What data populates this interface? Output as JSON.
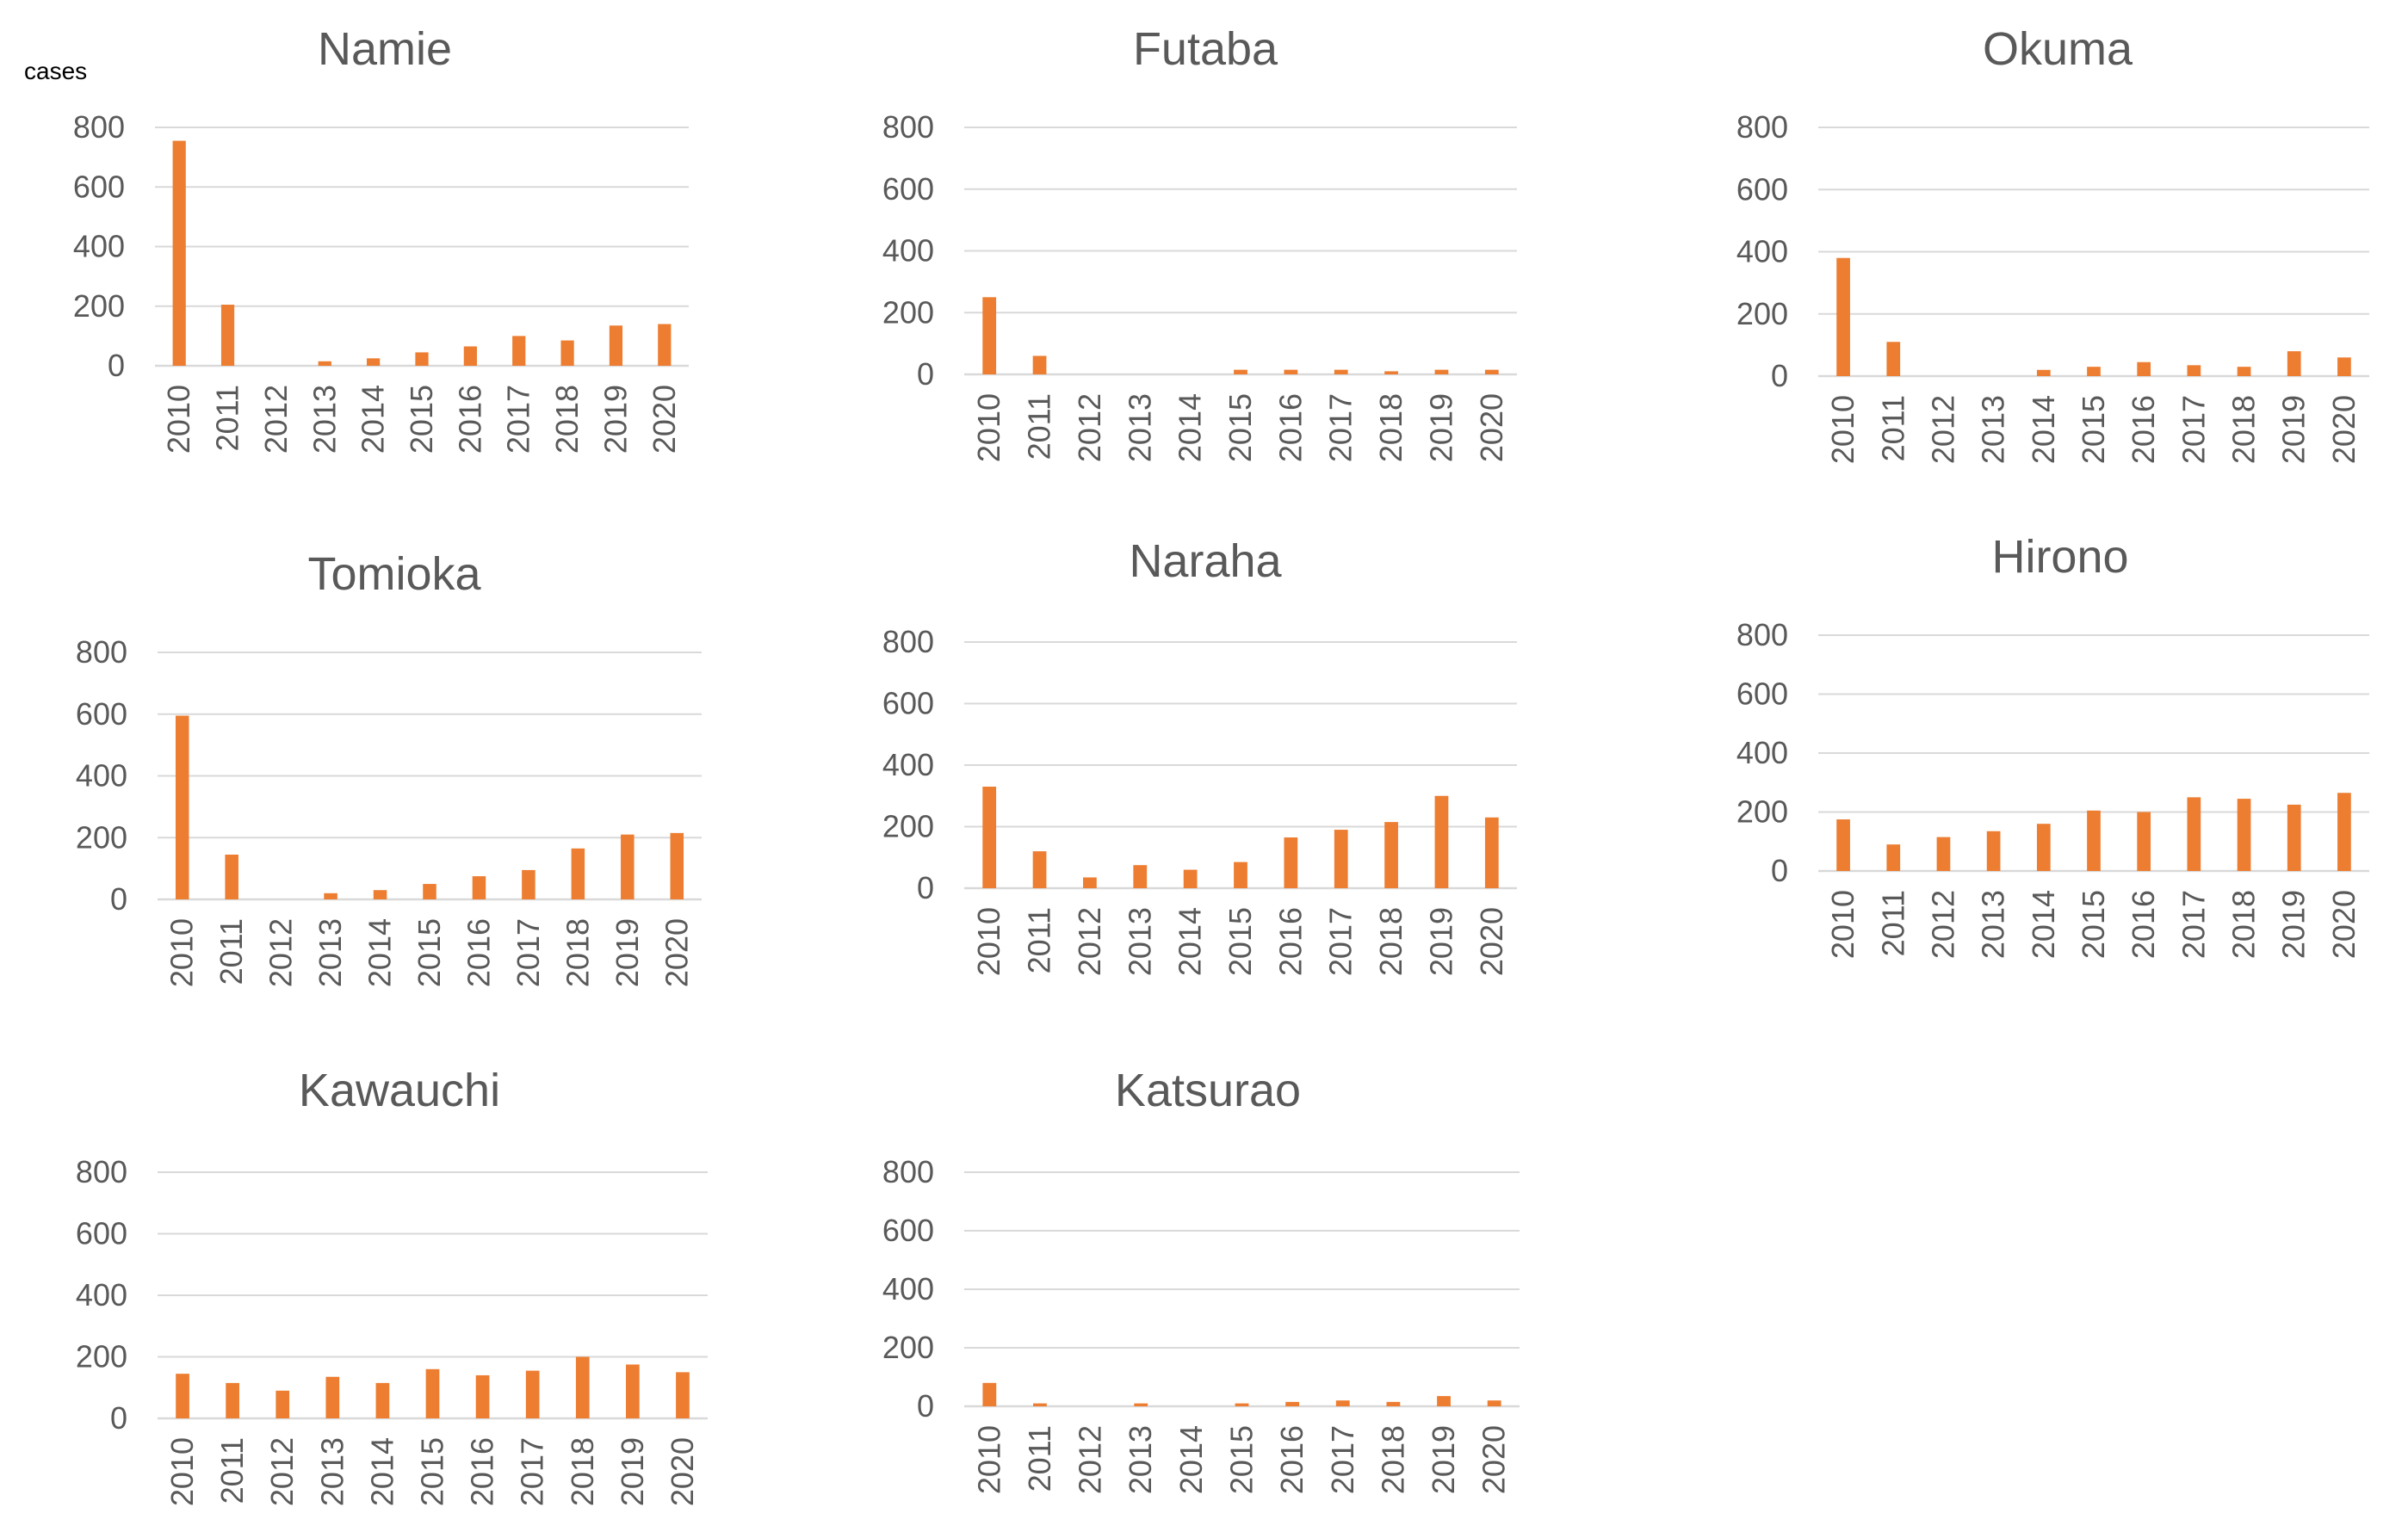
{
  "figure": {
    "unit_label": "cases",
    "bar_color": "#ED7D31"
  },
  "chart_data": [
    {
      "type": "bar",
      "title": "Namie",
      "xlabel": "",
      "ylabel": "cases",
      "ylim": [
        0,
        800
      ],
      "yticks": [
        "800",
        "600",
        "400",
        "200",
        "0"
      ],
      "categories": [
        "2010",
        "2011",
        "2012",
        "2013",
        "2014",
        "2015",
        "2016",
        "2017",
        "2018",
        "2019",
        "2020"
      ],
      "values": [
        755,
        205,
        0,
        15,
        25,
        45,
        65,
        100,
        85,
        135,
        140
      ]
    },
    {
      "type": "bar",
      "title": "Futaba",
      "xlabel": "",
      "ylabel": "",
      "ylim": [
        0,
        800
      ],
      "yticks": [
        "800",
        "600",
        "400",
        "200",
        "0"
      ],
      "categories": [
        "2010",
        "2011",
        "2012",
        "2013",
        "2014",
        "2015",
        "2016",
        "2017",
        "2018",
        "2019",
        "2020"
      ],
      "values": [
        250,
        60,
        0,
        0,
        0,
        15,
        15,
        15,
        10,
        15,
        15
      ]
    },
    {
      "type": "bar",
      "title": "Okuma",
      "xlabel": "",
      "ylabel": "",
      "ylim": [
        0,
        800
      ],
      "yticks": [
        "800",
        "600",
        "400",
        "200",
        "0"
      ],
      "categories": [
        "2010",
        "2011",
        "2012",
        "2013",
        "2014",
        "2015",
        "2016",
        "2017",
        "2018",
        "2019",
        "2020"
      ],
      "values": [
        380,
        110,
        0,
        0,
        20,
        30,
        45,
        35,
        30,
        80,
        60
      ]
    },
    {
      "type": "bar",
      "title": "Tomioka",
      "xlabel": "",
      "ylabel": "",
      "ylim": [
        0,
        800
      ],
      "yticks": [
        "800",
        "600",
        "400",
        "200",
        "0"
      ],
      "categories": [
        "2010",
        "2011",
        "2012",
        "2013",
        "2014",
        "2015",
        "2016",
        "2017",
        "2018",
        "2019",
        "2020"
      ],
      "values": [
        595,
        145,
        0,
        20,
        30,
        50,
        75,
        95,
        165,
        210,
        215
      ]
    },
    {
      "type": "bar",
      "title": "Naraha",
      "xlabel": "",
      "ylabel": "",
      "ylim": [
        0,
        800
      ],
      "yticks": [
        "800",
        "600",
        "400",
        "200",
        "0"
      ],
      "categories": [
        "2010",
        "2011",
        "2012",
        "2013",
        "2014",
        "2015",
        "2016",
        "2017",
        "2018",
        "2019",
        "2020"
      ],
      "values": [
        330,
        120,
        35,
        75,
        60,
        85,
        165,
        190,
        215,
        300,
        230
      ]
    },
    {
      "type": "bar",
      "title": "Hirono",
      "xlabel": "",
      "ylabel": "",
      "ylim": [
        0,
        800
      ],
      "yticks": [
        "800",
        "600",
        "400",
        "200",
        "0"
      ],
      "categories": [
        "2010",
        "2011",
        "2012",
        "2013",
        "2014",
        "2015",
        "2016",
        "2017",
        "2018",
        "2019",
        "2020"
      ],
      "values": [
        175,
        90,
        115,
        135,
        160,
        205,
        200,
        250,
        245,
        225,
        265
      ]
    },
    {
      "type": "bar",
      "title": "Kawauchi",
      "xlabel": "",
      "ylabel": "",
      "ylim": [
        0,
        800
      ],
      "yticks": [
        "800",
        "600",
        "400",
        "200",
        "0"
      ],
      "categories": [
        "2010",
        "2011",
        "2012",
        "2013",
        "2014",
        "2015",
        "2016",
        "2017",
        "2018",
        "2019",
        "2020"
      ],
      "values": [
        145,
        115,
        90,
        135,
        115,
        160,
        140,
        155,
        200,
        175,
        150
      ]
    },
    {
      "type": "bar",
      "title": "Katsurao",
      "xlabel": "",
      "ylabel": "",
      "ylim": [
        0,
        800
      ],
      "yticks": [
        "800",
        "600",
        "400",
        "200",
        "0"
      ],
      "categories": [
        "2010",
        "2011",
        "2012",
        "2013",
        "2014",
        "2015",
        "2016",
        "2017",
        "2018",
        "2019",
        "2020"
      ],
      "values": [
        80,
        10,
        0,
        10,
        0,
        10,
        15,
        20,
        15,
        35,
        20
      ]
    }
  ]
}
